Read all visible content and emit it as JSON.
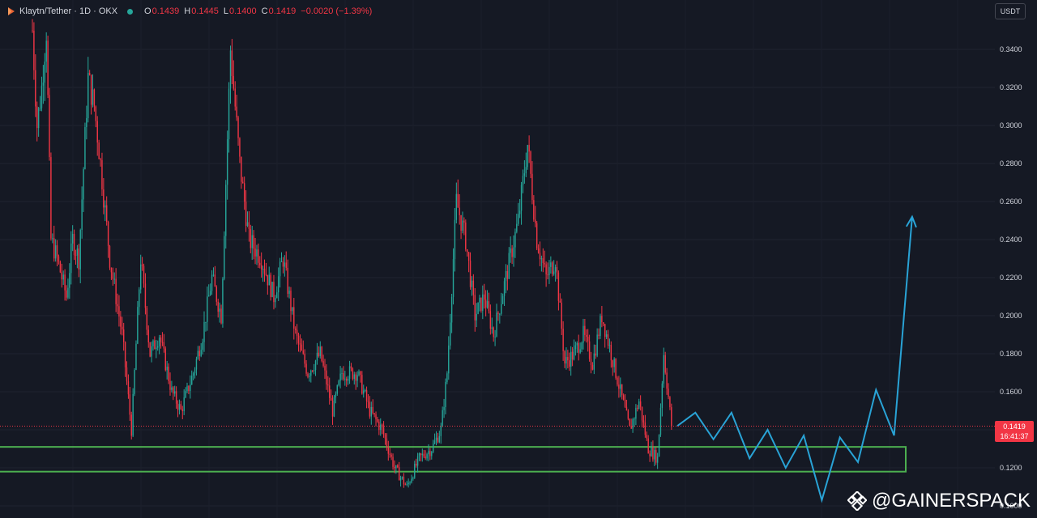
{
  "header": {
    "symbol_label": "Klaytn/Tether · 1D · OKX",
    "ohlc": [
      {
        "key": "O",
        "value": "0.1439"
      },
      {
        "key": "H",
        "value": "0.1445"
      },
      {
        "key": "L",
        "value": "0.1400"
      },
      {
        "key": "C",
        "value": "0.1419"
      }
    ],
    "change": "−0.0020 (−1.39%)",
    "currency_button": "USDT"
  },
  "price_tag": {
    "price": "0.1419",
    "countdown": "16:41:37"
  },
  "watermark": "@GAINERSPACK",
  "colors": {
    "background": "#151924",
    "up": "#26a69a",
    "down": "#f23645",
    "zone": "#4caf50",
    "projection": "#29a3d6",
    "text": "#d1d4dc"
  },
  "icons": {
    "symbol_logo": "klaytn-logo-icon",
    "market_status": "market-open-dot-icon",
    "watermark_logo": "binance-diamond-icon"
  },
  "chart_data": {
    "type": "candlestick",
    "title": "",
    "xlabel": "",
    "ylabel": "",
    "ylim": [
      0.1,
      0.36
    ],
    "grid": true,
    "ytick_labels": [
      "0.1000",
      "0.1200",
      "0.1400",
      "0.1600",
      "0.1800",
      "0.2000",
      "0.2200",
      "0.2400",
      "0.2600",
      "0.2800",
      "0.3000",
      "0.3200",
      "0.3400"
    ],
    "ytick_values": [
      0.1,
      0.12,
      0.14,
      0.16,
      0.18,
      0.2,
      0.22,
      0.24,
      0.26,
      0.28,
      0.3,
      0.32,
      0.34
    ],
    "last_price": 0.1419,
    "price_path_approx": [
      [
        0,
        0.35
      ],
      [
        3,
        0.3
      ],
      [
        6,
        0.32
      ],
      [
        9,
        0.35
      ],
      [
        12,
        0.24
      ],
      [
        16,
        0.23
      ],
      [
        22,
        0.21
      ],
      [
        26,
        0.24
      ],
      [
        30,
        0.23
      ],
      [
        36,
        0.325
      ],
      [
        40,
        0.31
      ],
      [
        44,
        0.28
      ],
      [
        50,
        0.23
      ],
      [
        58,
        0.19
      ],
      [
        64,
        0.14
      ],
      [
        70,
        0.23
      ],
      [
        76,
        0.18
      ],
      [
        82,
        0.19
      ],
      [
        90,
        0.16
      ],
      [
        96,
        0.15
      ],
      [
        104,
        0.17
      ],
      [
        110,
        0.19
      ],
      [
        116,
        0.22
      ],
      [
        122,
        0.2
      ],
      [
        128,
        0.34
      ],
      [
        134,
        0.28
      ],
      [
        140,
        0.24
      ],
      [
        148,
        0.23
      ],
      [
        156,
        0.21
      ],
      [
        162,
        0.23
      ],
      [
        170,
        0.19
      ],
      [
        178,
        0.17
      ],
      [
        186,
        0.18
      ],
      [
        194,
        0.15
      ],
      [
        200,
        0.17
      ],
      [
        210,
        0.17
      ],
      [
        218,
        0.15
      ],
      [
        226,
        0.14
      ],
      [
        234,
        0.12
      ],
      [
        242,
        0.11
      ],
      [
        250,
        0.125
      ],
      [
        258,
        0.13
      ],
      [
        264,
        0.14
      ],
      [
        268,
        0.17
      ],
      [
        274,
        0.26
      ],
      [
        280,
        0.24
      ],
      [
        286,
        0.2
      ],
      [
        292,
        0.21
      ],
      [
        298,
        0.19
      ],
      [
        306,
        0.22
      ],
      [
        314,
        0.25
      ],
      [
        320,
        0.29
      ],
      [
        326,
        0.24
      ],
      [
        332,
        0.22
      ],
      [
        338,
        0.23
      ],
      [
        344,
        0.175
      ],
      [
        350,
        0.18
      ],
      [
        356,
        0.19
      ],
      [
        362,
        0.175
      ],
      [
        368,
        0.2
      ],
      [
        374,
        0.18
      ],
      [
        380,
        0.16
      ],
      [
        386,
        0.14
      ],
      [
        392,
        0.155
      ],
      [
        398,
        0.13
      ],
      [
        404,
        0.125
      ],
      [
        408,
        0.18
      ],
      [
        413,
        0.142
      ]
    ],
    "support_zone": {
      "low": 0.118,
      "high": 0.131
    },
    "projection_path": [
      [
        0,
        0.142
      ],
      [
        1,
        0.149
      ],
      [
        2,
        0.135
      ],
      [
        3,
        0.149
      ],
      [
        4,
        0.125
      ],
      [
        5,
        0.14
      ],
      [
        6,
        0.12
      ],
      [
        7,
        0.137
      ],
      [
        8,
        0.103
      ],
      [
        9,
        0.136
      ],
      [
        10,
        0.123
      ],
      [
        11,
        0.161
      ],
      [
        12,
        0.137
      ],
      [
        13,
        0.252
      ]
    ]
  }
}
